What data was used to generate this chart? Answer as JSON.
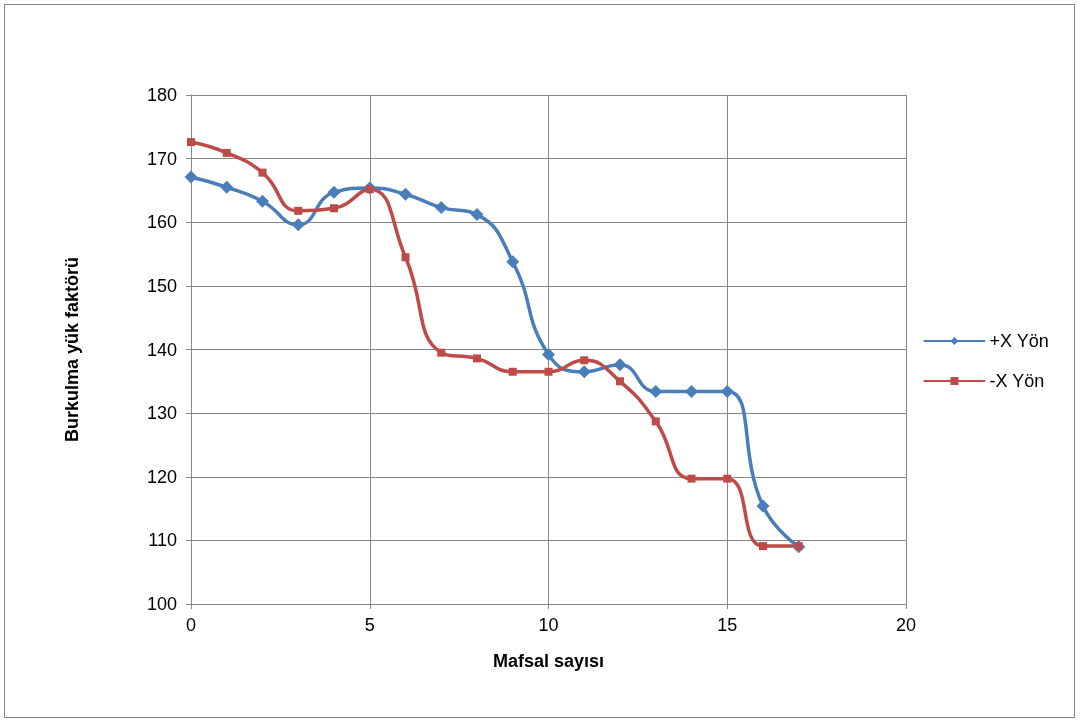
{
  "chart_data": {
    "type": "line",
    "xlabel": "Mafsal sayısı",
    "ylabel": "Burkulma yük faktörü",
    "x": [
      0,
      1,
      2,
      3,
      4,
      5,
      6,
      7,
      8,
      9,
      10,
      11,
      12,
      13,
      14,
      15,
      16,
      17
    ],
    "series": [
      {
        "name": "+X Yön",
        "color": "#4a7ebb",
        "marker": "diamond",
        "values": [
          167.1,
          165.5,
          163.3,
          159.6,
          164.7,
          165.4,
          164.4,
          162.3,
          161.2,
          153.8,
          139.2,
          136.5,
          137.6,
          133.4,
          133.4,
          133.4,
          115.4,
          109
        ]
      },
      {
        "name": "-X Yön",
        "color": "#be4b48",
        "marker": "square",
        "values": [
          172.6,
          170.9,
          167.8,
          161.8,
          162.2,
          165.2,
          154.5,
          139.5,
          138.6,
          136.5,
          136.5,
          138.3,
          135,
          128.7,
          119.7,
          119.7,
          109.1,
          109.1
        ]
      }
    ],
    "xlim": [
      0,
      20
    ],
    "xticks": [
      0,
      5,
      10,
      15,
      20
    ],
    "ylim": [
      100,
      180
    ],
    "yticks": [
      100,
      110,
      120,
      130,
      140,
      150,
      160,
      170,
      180
    ],
    "grid": true,
    "legend": "right"
  }
}
